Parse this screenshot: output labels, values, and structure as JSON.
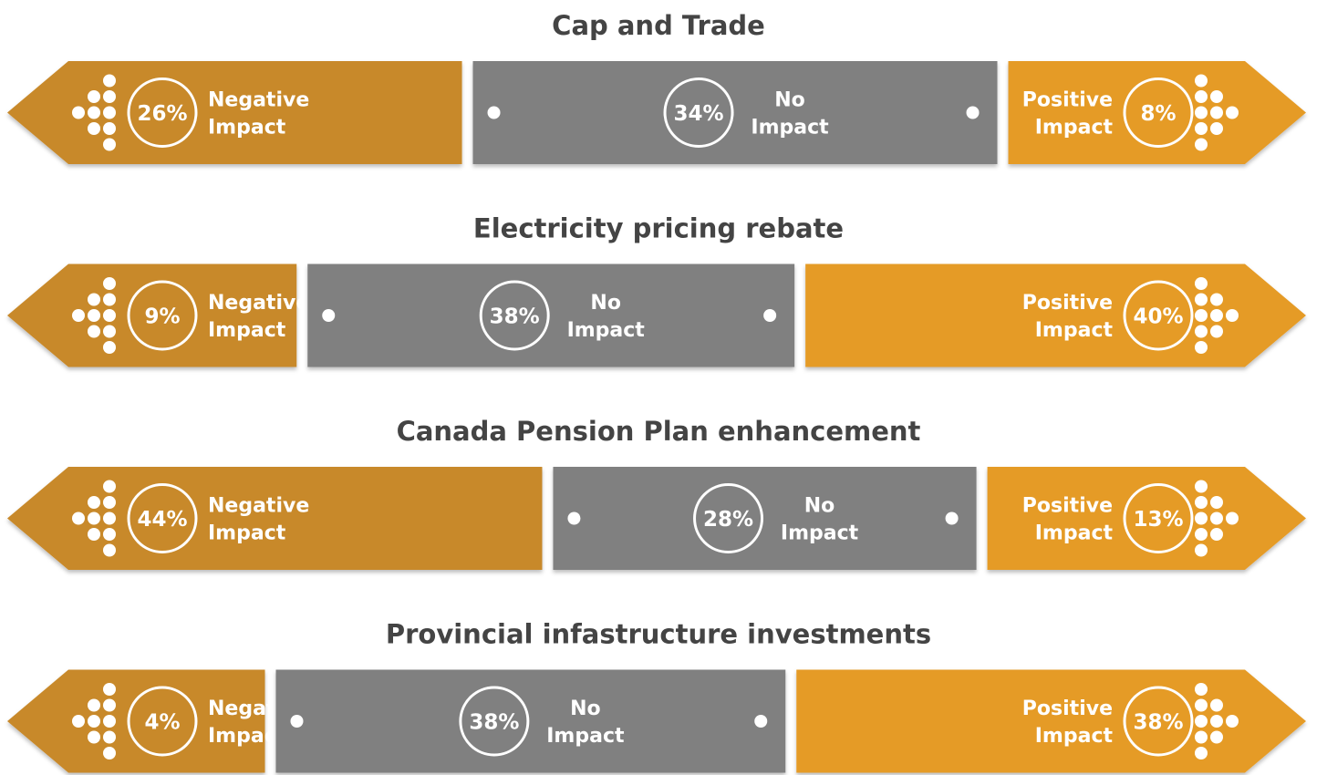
{
  "chart_data": [
    {
      "type": "segmented-arrow",
      "title": "Cap and Trade",
      "series": [
        {
          "name": "Negative Impact",
          "color": "#c8892b",
          "values": [
            26
          ],
          "value_labels": [
            "26%"
          ]
        },
        {
          "name": "No Impact",
          "color": "#808080",
          "values": [
            34
          ],
          "value_labels": [
            "34%"
          ]
        },
        {
          "name": "Positive Impact",
          "color": "#e59b28",
          "values": [
            8
          ],
          "value_labels": [
            "8%"
          ]
        }
      ]
    },
    {
      "type": "segmented-arrow",
      "title": "Electricity pricing rebate",
      "series": [
        {
          "name": "Negative Impact",
          "color": "#c8892b",
          "values": [
            9
          ],
          "value_labels": [
            "9%"
          ]
        },
        {
          "name": "No Impact",
          "color": "#808080",
          "values": [
            38
          ],
          "value_labels": [
            "38%"
          ]
        },
        {
          "name": "Positive Impact",
          "color": "#e59b28",
          "values": [
            40
          ],
          "value_labels": [
            "40%"
          ]
        }
      ]
    },
    {
      "type": "segmented-arrow",
      "title": "Canada Pension Plan enhancement",
      "series": [
        {
          "name": "Negative Impact",
          "color": "#c8892b",
          "values": [
            44
          ],
          "value_labels": [
            "44%"
          ]
        },
        {
          "name": "No Impact",
          "color": "#808080",
          "values": [
            28
          ],
          "value_labels": [
            "28%"
          ]
        },
        {
          "name": "Positive Impact",
          "color": "#e59b28",
          "values": [
            13
          ],
          "value_labels": [
            "13%"
          ]
        }
      ]
    },
    {
      "type": "segmented-arrow",
      "title": "Provincial infastructure investments",
      "series": [
        {
          "name": "Negative Impact",
          "color": "#c8892b",
          "values": [
            4
          ],
          "value_labels": [
            "4%"
          ]
        },
        {
          "name": "No Impact",
          "color": "#808080",
          "values": [
            38
          ],
          "value_labels": [
            "38%"
          ]
        },
        {
          "name": "Positive Impact",
          "color": "#e59b28",
          "values": [
            38
          ],
          "value_labels": [
            "38%"
          ]
        }
      ]
    }
  ]
}
